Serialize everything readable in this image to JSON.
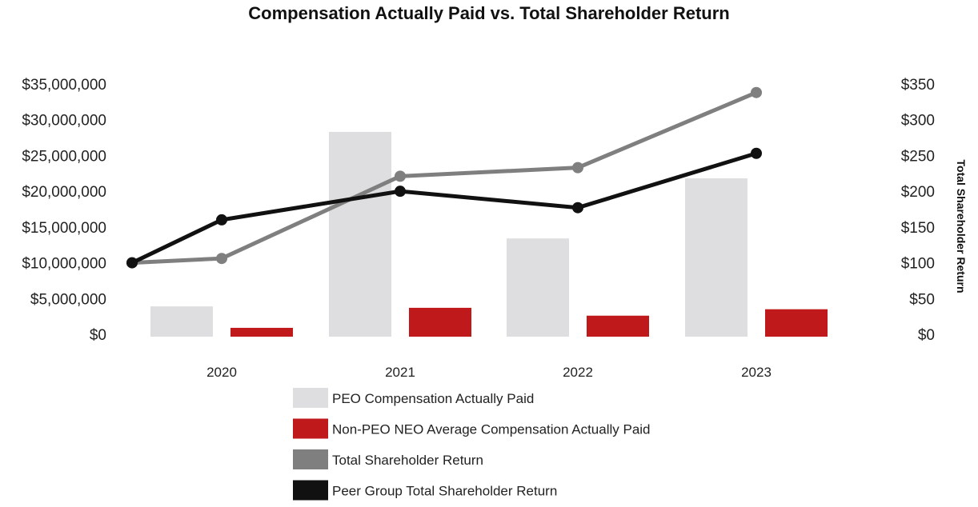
{
  "chart_data": {
    "type": "bar",
    "title": "Compensation Actually Paid vs. Total Shareholder Return",
    "categories": [
      "2020",
      "2021",
      "2022",
      "2023"
    ],
    "y_left": {
      "label": "",
      "ylim": [
        0,
        35000000
      ],
      "ticks": [
        "$0",
        "$5,000,000",
        "$10,000,000",
        "$15,000,000",
        "$20,000,000",
        "$25,000,000",
        "$30,000,000",
        "$35,000,000"
      ]
    },
    "y_right": {
      "label": "Total Shareholder Return",
      "ylim": [
        0,
        350
      ],
      "ticks": [
        "$0",
        "$50",
        "$100",
        "$150",
        "$200",
        "$250",
        "$300",
        "$350"
      ]
    },
    "bar_series": [
      {
        "name": "PEO Compensation Actually Paid",
        "color": "#dedee0",
        "values": [
          3900000,
          28300000,
          13400000,
          21800000
        ]
      },
      {
        "name": "Non-PEO NEO Average Compensation Actually Paid",
        "color": "#c0191c",
        "values": [
          900000,
          3700000,
          2600000,
          3500000
        ]
      }
    ],
    "line_series": [
      {
        "name": "Total Shareholder Return",
        "color": "#7f7f7f",
        "baseline": 100,
        "values": [
          106,
          221,
          233,
          338
        ]
      },
      {
        "name": "Peer Group Total Shareholder Return",
        "color": "#111111",
        "baseline": 100,
        "values": [
          160,
          200,
          177,
          253
        ]
      }
    ],
    "legend_position": "bottom"
  }
}
